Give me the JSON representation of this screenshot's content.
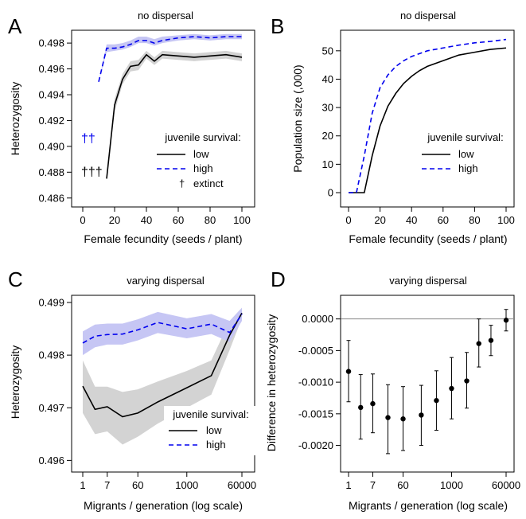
{
  "figure": {
    "colors": {
      "low": "#000000",
      "high": "#0000ee",
      "low_band": "#d3d3d3",
      "high_band": "#c6c6f4",
      "grid": "#888888"
    }
  },
  "chart_data": [
    {
      "panel": "A",
      "type": "line",
      "title": "no dispersal",
      "xlabel": "Female fecundity (seeds / plant)",
      "ylabel": "Heterozygosity",
      "xlim": [
        0,
        100
      ],
      "ylim": [
        0.4858,
        0.4985
      ],
      "xticks": [
        0,
        20,
        40,
        60,
        80,
        100
      ],
      "yticks": [
        0.486,
        0.488,
        0.49,
        0.492,
        0.494,
        0.496,
        0.498
      ],
      "ytick_labels": [
        "0.486",
        "0.488",
        "0.490",
        "0.492",
        "0.494",
        "0.496",
        "0.498"
      ],
      "legend_title": "juvenile survival:",
      "legend_position": "right",
      "extinct_marks": [
        {
          "series": "high",
          "text": "††"
        },
        {
          "series": "low",
          "text": "†††"
        }
      ],
      "extinct_legend": "extinct",
      "series": [
        {
          "name": "low",
          "style": "solid",
          "x": [
            15,
            20,
            25,
            30,
            35,
            40,
            45,
            50,
            60,
            70,
            80,
            90,
            100
          ],
          "y": [
            0.4875,
            0.4932,
            0.4952,
            0.4962,
            0.4963,
            0.4971,
            0.4966,
            0.4971,
            0.497,
            0.4969,
            0.497,
            0.4971,
            0.4969
          ],
          "lower": [
            0.4875,
            0.4927,
            0.4948,
            0.4958,
            0.4959,
            0.4968,
            0.4963,
            0.4968,
            0.4967,
            0.4966,
            0.4967,
            0.4968,
            0.4966
          ],
          "upper": [
            0.4875,
            0.4937,
            0.4956,
            0.4966,
            0.4967,
            0.4974,
            0.4969,
            0.4974,
            0.4973,
            0.4972,
            0.4973,
            0.4974,
            0.4972
          ]
        },
        {
          "name": "high",
          "style": "dashed",
          "x": [
            10,
            15,
            20,
            25,
            30,
            35,
            40,
            45,
            50,
            60,
            70,
            80,
            90,
            100
          ],
          "y": [
            0.495,
            0.4976,
            0.4976,
            0.4977,
            0.4979,
            0.4982,
            0.4982,
            0.498,
            0.4982,
            0.4984,
            0.4985,
            0.4984,
            0.4985,
            0.4985
          ],
          "lower": [
            0.495,
            0.4973,
            0.4974,
            0.4975,
            0.4977,
            0.498,
            0.498,
            0.4978,
            0.498,
            0.4982,
            0.4983,
            0.4982,
            0.4983,
            0.4983
          ],
          "upper": [
            0.495,
            0.4979,
            0.4979,
            0.498,
            0.4982,
            0.4985,
            0.4985,
            0.4983,
            0.4985,
            0.4986,
            0.4987,
            0.4986,
            0.4987,
            0.4987
          ]
        }
      ]
    },
    {
      "panel": "B",
      "type": "line",
      "title": "no dispersal",
      "xlabel": "Female fecundity (seeds / plant)",
      "ylabel": "Population size (,000)",
      "xlim": [
        0,
        100
      ],
      "ylim": [
        0,
        55
      ],
      "xticks": [
        0,
        20,
        40,
        60,
        80,
        100
      ],
      "yticks": [
        0,
        10,
        20,
        30,
        40,
        50
      ],
      "ytick_labels": [
        "0",
        "10",
        "20",
        "30",
        "40",
        "50"
      ],
      "legend_title": "juvenile survival:",
      "legend_position": "right",
      "series": [
        {
          "name": "low",
          "style": "solid",
          "x": [
            0,
            5,
            10,
            15,
            20,
            25,
            30,
            35,
            40,
            45,
            50,
            60,
            70,
            80,
            90,
            100
          ],
          "y": [
            0,
            0,
            0,
            13,
            23.5,
            30.5,
            35,
            38.5,
            41,
            43,
            44.5,
            46.5,
            48.5,
            49.5,
            50.5,
            51
          ]
        },
        {
          "name": "high",
          "style": "dashed",
          "x": [
            0,
            5,
            10,
            15,
            20,
            25,
            30,
            35,
            40,
            45,
            50,
            60,
            70,
            80,
            90,
            100
          ],
          "y": [
            0,
            0,
            13,
            28,
            37,
            41.5,
            44.5,
            46.5,
            48,
            49,
            50,
            51,
            52,
            52.8,
            53.3,
            54
          ]
        }
      ]
    },
    {
      "panel": "C",
      "type": "line",
      "title": "varying dispersal",
      "xlabel": "Migrants / generation (log scale)",
      "ylabel": "Heterozygosity",
      "x_scale": "log",
      "xlim": [
        1,
        60000
      ],
      "ylim": [
        0.4959,
        0.499
      ],
      "xticks": [
        1,
        7,
        60,
        1000,
        60000
      ],
      "xtick_labels": [
        "1",
        "7",
        "60",
        "1000",
        "60000"
      ],
      "yticks": [
        0.496,
        0.497,
        0.498,
        0.499
      ],
      "ytick_labels": [
        "0.496",
        "0.497",
        "0.498",
        "0.499"
      ],
      "legend_title": "juvenile survival:",
      "legend_position": "bottom-right",
      "series": [
        {
          "name": "low",
          "style": "solid",
          "x": [
            1,
            3,
            7,
            20,
            60,
            200,
            1000,
            5000,
            20000,
            60000
          ],
          "y": [
            0.49741,
            0.49697,
            0.49702,
            0.49683,
            0.4969,
            0.49711,
            0.49738,
            0.49761,
            0.49838,
            0.4988
          ],
          "lower": [
            0.4969,
            0.4965,
            0.49655,
            0.4963,
            0.49645,
            0.4967,
            0.497,
            0.49725,
            0.4981,
            0.4987
          ],
          "upper": [
            0.4979,
            0.4974,
            0.4974,
            0.4973,
            0.49735,
            0.4975,
            0.4977,
            0.4979,
            0.49865,
            0.4989
          ]
        },
        {
          "name": "high",
          "style": "dashed",
          "x": [
            1,
            3,
            7,
            20,
            60,
            200,
            1000,
            5000,
            20000,
            60000
          ],
          "y": [
            0.49823,
            0.49836,
            0.49839,
            0.4984,
            0.49848,
            0.49862,
            0.4985,
            0.49859,
            0.49843,
            0.49878
          ],
          "lower": [
            0.498,
            0.49815,
            0.4982,
            0.4982,
            0.49828,
            0.49842,
            0.49832,
            0.4984,
            0.49825,
            0.49865
          ],
          "upper": [
            0.49845,
            0.49858,
            0.4986,
            0.4986,
            0.49868,
            0.49882,
            0.4987,
            0.49878,
            0.49865,
            0.4989
          ]
        }
      ]
    },
    {
      "panel": "D",
      "type": "scatter",
      "title": "varying dispersal",
      "xlabel": "Migrants / generation (log scale)",
      "ylabel": "Difference in heterozygosity",
      "x_scale": "log",
      "xlim": [
        1,
        60000
      ],
      "ylim": [
        -0.00232,
        0.00026
      ],
      "xticks": [
        1,
        7,
        60,
        1000,
        60000
      ],
      "xtick_labels": [
        "1",
        "7",
        "60",
        "1000",
        "60000"
      ],
      "yticks": [
        -0.002,
        -0.0015,
        -0.001,
        -0.0005,
        0
      ],
      "ytick_labels": [
        "-0.0020",
        "-0.0015",
        "-0.0010",
        "-0.0005",
        "0.0000"
      ],
      "reference_line": 0,
      "error_bars": true,
      "points": [
        {
          "x": 1,
          "y": -0.00083,
          "lower": -0.00131,
          "upper": -0.00034
        },
        {
          "x": 3,
          "y": -0.0014,
          "lower": -0.0019,
          "upper": -0.00088
        },
        {
          "x": 7,
          "y": -0.00134,
          "lower": -0.0018,
          "upper": -0.00087
        },
        {
          "x": 20,
          "y": -0.00156,
          "lower": -0.00213,
          "upper": -0.00104
        },
        {
          "x": 60,
          "y": -0.00158,
          "lower": -0.00208,
          "upper": -0.00107
        },
        {
          "x": 150,
          "y": -0.00152,
          "lower": -0.002,
          "upper": -0.00105
        },
        {
          "x": 400,
          "y": -0.00129,
          "lower": -0.00176,
          "upper": -0.00082
        },
        {
          "x": 1000,
          "y": -0.0011,
          "lower": -0.00158,
          "upper": -0.00061
        },
        {
          "x": 2500,
          "y": -0.00098,
          "lower": -0.00141,
          "upper": -0.00053
        },
        {
          "x": 6000,
          "y": -0.00039,
          "lower": -0.00076,
          "upper": 0.0
        },
        {
          "x": 15000,
          "y": -0.00034,
          "lower": -0.00058,
          "upper": -0.0001
        },
        {
          "x": 60000,
          "y": -2e-05,
          "lower": -0.00019,
          "upper": 0.00015
        }
      ]
    }
  ]
}
